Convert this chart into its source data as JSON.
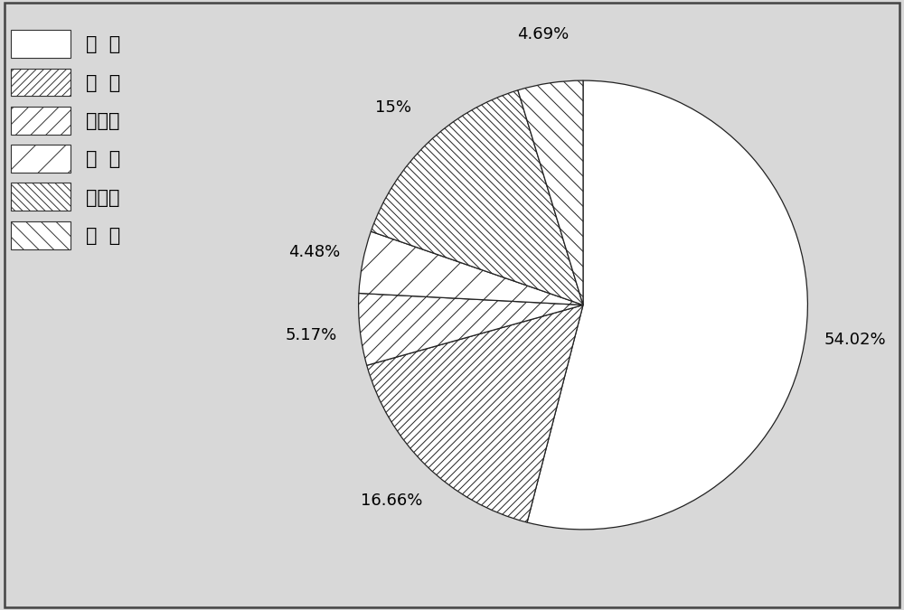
{
  "labels": [
    "乙  酸",
    "丙  酸",
    "异丁酸",
    "丁  酸",
    "异戊酸",
    "戊  酸"
  ],
  "values": [
    54.02,
    16.66,
    5.17,
    4.48,
    15.0,
    4.69
  ],
  "pct_labels": [
    "54.02%",
    "16.66%",
    "5.17%",
    "4.48%",
    "15%",
    "4.69%"
  ],
  "hatches": [
    "",
    "////",
    "//",
    "/",
    "\\\\\\\\",
    "\\\\"
  ],
  "background_color": "#d8d8d8",
  "border_color": "#333333",
  "pct_font_size": 13,
  "legend_font_size": 15,
  "startangle": 90
}
